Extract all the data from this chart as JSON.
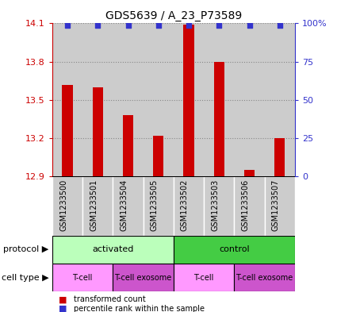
{
  "title": "GDS5639 / A_23_P73589",
  "samples": [
    "GSM1233500",
    "GSM1233501",
    "GSM1233504",
    "GSM1233505",
    "GSM1233502",
    "GSM1233503",
    "GSM1233506",
    "GSM1233507"
  ],
  "bar_values": [
    13.62,
    13.6,
    13.38,
    13.22,
    14.09,
    13.8,
    12.95,
    13.2
  ],
  "y_min": 12.9,
  "y_max": 14.1,
  "y_ticks": [
    12.9,
    13.2,
    13.5,
    13.8,
    14.1
  ],
  "right_y_ticks": [
    0,
    25,
    50,
    75,
    100
  ],
  "right_y_labels": [
    "0",
    "25",
    "50",
    "75",
    "100%"
  ],
  "bar_color": "#cc0000",
  "blue_color": "#3333cc",
  "protocol_groups": [
    {
      "label": "activated",
      "start": 0,
      "end": 3,
      "color": "#bbffbb"
    },
    {
      "label": "control",
      "start": 4,
      "end": 7,
      "color": "#44cc44"
    }
  ],
  "cell_type_groups": [
    {
      "label": "T-cell",
      "start": 0,
      "end": 1,
      "color": "#ff99ff"
    },
    {
      "label": "T-cell exosome",
      "start": 2,
      "end": 3,
      "color": "#cc55cc"
    },
    {
      "label": "T-cell",
      "start": 4,
      "end": 5,
      "color": "#ff99ff"
    },
    {
      "label": "T-cell exosome",
      "start": 6,
      "end": 7,
      "color": "#cc55cc"
    }
  ],
  "ylabel_left_color": "#cc0000",
  "ylabel_right_color": "#3333cc",
  "bar_width": 0.35,
  "sample_area_color": "#cccccc",
  "sample_sep_color": "#ffffff",
  "legend_sq_size": 8,
  "title_fontsize": 10,
  "tick_fontsize": 8,
  "sample_fontsize": 7,
  "protocol_fontsize": 8,
  "cell_fontsize": 7,
  "legend_fontsize": 7
}
